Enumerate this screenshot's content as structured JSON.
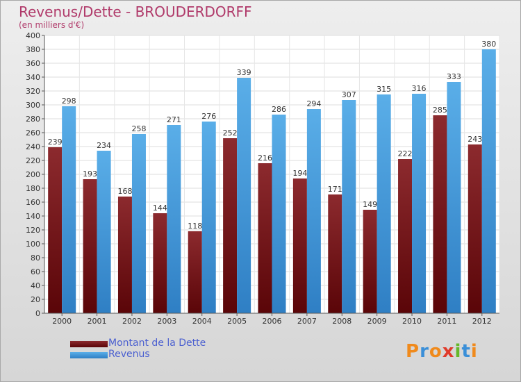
{
  "header": {
    "title": "Revenus/Dette - BROUDERDORFF",
    "subtitle": "(en milliers d'€)"
  },
  "legend": [
    {
      "label": "Montant de la Dette",
      "color": "#6b0f12"
    },
    {
      "label": "Revenus",
      "color": "#4aa0e6"
    }
  ],
  "logo": {
    "text": "Proxiti",
    "letter_colors": [
      "#f08a1c",
      "#3a8fd8",
      "#f08a1c",
      "#e03a2a",
      "#66b82a",
      "#3a8fd8",
      "#f08a1c"
    ]
  },
  "chart_data": {
    "type": "bar",
    "categories": [
      "2000",
      "2001",
      "2002",
      "2003",
      "2004",
      "2005",
      "2006",
      "2007",
      "2008",
      "2009",
      "2010",
      "2011",
      "2012"
    ],
    "series": [
      {
        "name": "Montant de la Dette",
        "color": "#6b0f12",
        "values": [
          239,
          193,
          168,
          144,
          118,
          252,
          216,
          194,
          171,
          149,
          222,
          285,
          243
        ]
      },
      {
        "name": "Revenus",
        "color": "#4aa0e6",
        "values": [
          298,
          234,
          258,
          271,
          276,
          339,
          286,
          294,
          307,
          315,
          316,
          333,
          380
        ]
      }
    ],
    "yticks": [
      0,
      20,
      40,
      60,
      80,
      100,
      120,
      140,
      160,
      180,
      200,
      220,
      240,
      260,
      280,
      300,
      320,
      340,
      360,
      380,
      400
    ],
    "ylim": [
      0,
      400
    ],
    "grid": true,
    "legend_position": "bottom-left"
  }
}
